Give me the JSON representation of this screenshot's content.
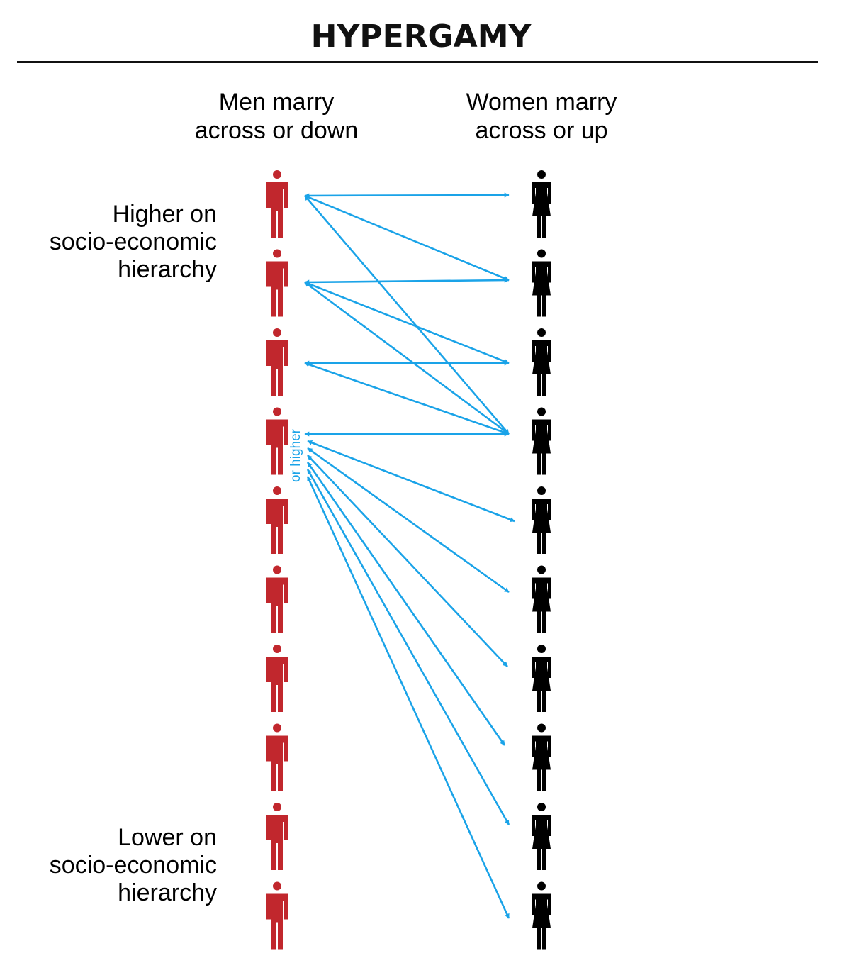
{
  "title": "HYPERGAMY",
  "columns": {
    "men": {
      "line1": "Men marry",
      "line2": "across or down"
    },
    "women": {
      "line1": "Women marry",
      "line2": "across or up"
    }
  },
  "side_labels": {
    "top": {
      "line1": "Higher on",
      "line2": "socio-economic",
      "line3": "hierarchy"
    },
    "bottom": {
      "line1": "Lower on",
      "line2": "socio-economic",
      "line3": "hierarchy"
    }
  },
  "annotation": "or higher",
  "colors": {
    "men_figure": "#c1272d",
    "women_figure": "#000000",
    "arrow": "#1aa3e8"
  },
  "icons": {
    "man": "man-figure-icon",
    "woman": "woman-figure-icon"
  },
  "levels": 10,
  "connections": [
    {
      "man": 1,
      "woman": 1
    },
    {
      "man": 1,
      "woman": 2
    },
    {
      "man": 1,
      "woman": 4
    },
    {
      "man": 2,
      "woman": 2
    },
    {
      "man": 2,
      "woman": 3
    },
    {
      "man": 2,
      "woman": 4
    },
    {
      "man": 3,
      "woman": 3
    },
    {
      "man": 3,
      "woman": 4
    },
    {
      "man": 4,
      "woman": 4
    },
    {
      "man": 4,
      "woman": 5
    },
    {
      "man": 4,
      "woman": 6
    },
    {
      "man": 4,
      "woman": 7
    },
    {
      "man": 4,
      "woman": 8
    },
    {
      "man": 4,
      "woman": 9
    },
    {
      "man": 4,
      "woman": 10
    }
  ]
}
